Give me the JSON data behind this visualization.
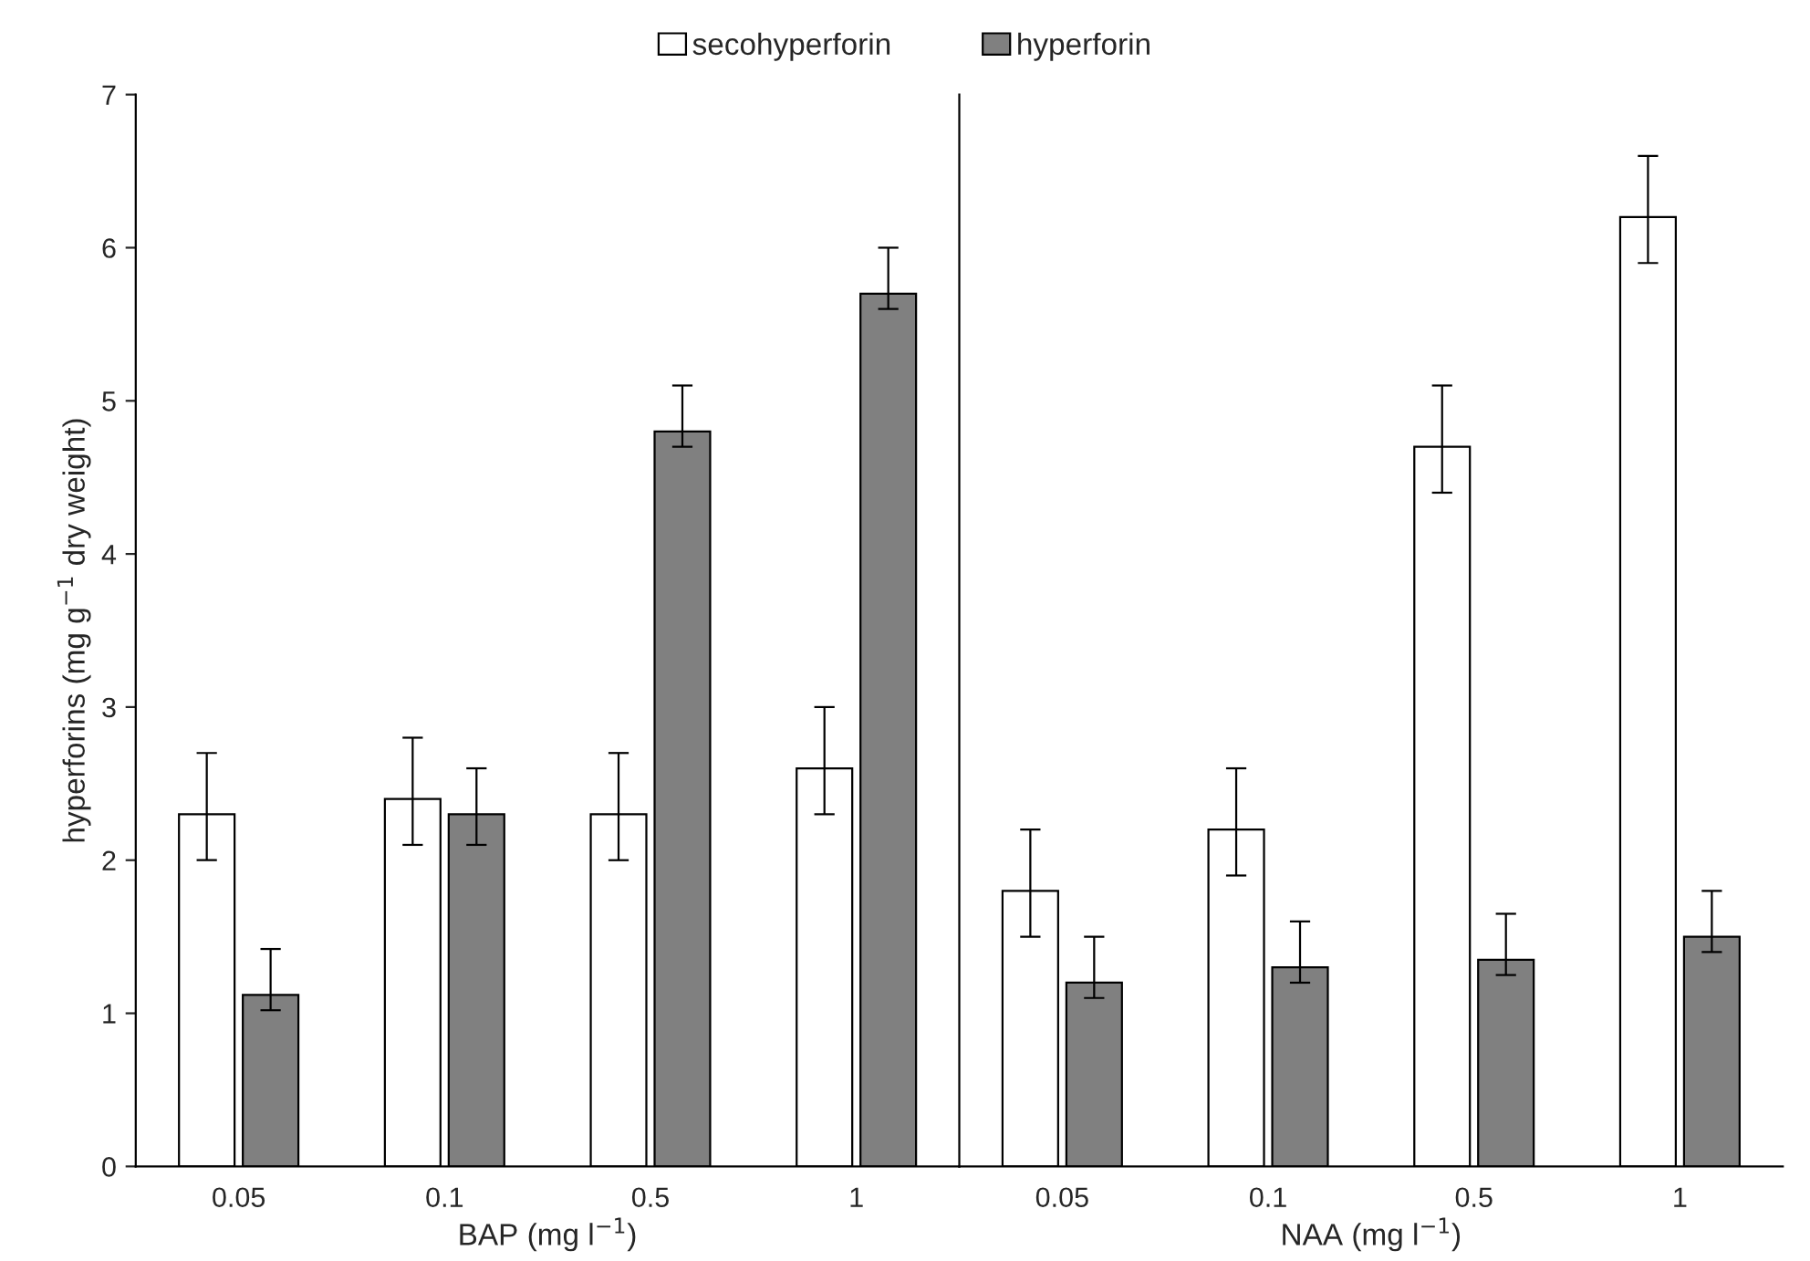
{
  "chart_data": [
    {
      "type": "bar",
      "xlabel": "BAP (mg l$^{−1}$)",
      "ylabel": "hyperforins (mg g$^{−1}$ dry weight)",
      "categories": [
        "0.05",
        "0.1",
        "0.5",
        "1"
      ],
      "ylim": [
        0,
        7
      ],
      "yticks": [
        0,
        1,
        2,
        3,
        4,
        5,
        6,
        7
      ],
      "legend": "top",
      "grid": false,
      "series": [
        {
          "name": "secohyperforin",
          "color": "#ffffff",
          "values": [
            2.3,
            2.4,
            2.3,
            2.6
          ],
          "errors": [
            [
              2.0,
              2.7
            ],
            [
              2.1,
              2.8
            ],
            [
              2.0,
              2.7
            ],
            [
              2.3,
              3.0
            ]
          ]
        },
        {
          "name": "hyperforin",
          "color": "#808080",
          "values": [
            1.12,
            2.3,
            4.8,
            5.7
          ],
          "errors": [
            [
              1.02,
              1.42
            ],
            [
              2.1,
              2.6
            ],
            [
              4.7,
              5.1
            ],
            [
              5.6,
              6.0
            ]
          ]
        }
      ]
    },
    {
      "type": "bar",
      "xlabel": "NAA (mg l$^{−1}$)",
      "categories": [
        "0.05",
        "0.1",
        "0.5",
        "1"
      ],
      "ylim": [
        0,
        7
      ],
      "yticks": [
        0,
        1,
        2,
        3,
        4,
        5,
        6,
        7
      ],
      "tick_labels": "x",
      "grid": false,
      "series": [
        {
          "color": "#ffffff",
          "values": [
            1.8,
            2.2,
            4.7,
            6.2
          ],
          "errors": [
            [
              1.5,
              2.2
            ],
            [
              1.9,
              2.6
            ],
            [
              4.4,
              5.1
            ],
            [
              5.9,
              6.6
            ]
          ]
        },
        {
          "color": "#808080",
          "values": [
            1.2,
            1.3,
            1.35,
            1.5
          ],
          "errors": [
            [
              1.1,
              1.5
            ],
            [
              1.2,
              1.6
            ],
            [
              1.25,
              1.65
            ],
            [
              1.4,
              1.8
            ]
          ]
        }
      ]
    }
  ]
}
